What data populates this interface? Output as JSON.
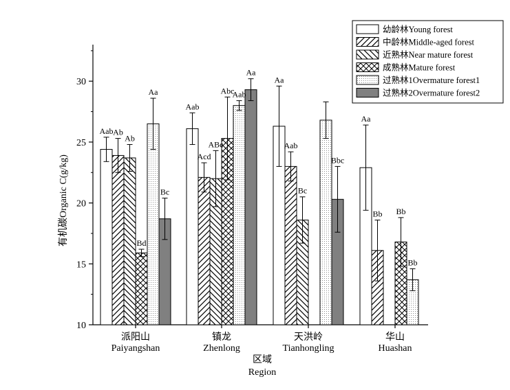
{
  "chart_data": {
    "type": "bar",
    "xlabel_cn": "区域",
    "xlabel_en": "Region",
    "ylabel": "有机碳Organic C(g/kg)",
    "ylim": [
      10,
      33
    ],
    "yticks": [
      10,
      15,
      20,
      25,
      30
    ],
    "legend_position": "top-right",
    "categories": [
      {
        "cn": "派阳山",
        "en": "Paiyangshan"
      },
      {
        "cn": "镇龙",
        "en": "Zhenlong"
      },
      {
        "cn": "天洪岭",
        "en": "Tianhongling"
      },
      {
        "cn": "华山",
        "en": "Huashan"
      }
    ],
    "series": [
      {
        "name": "幼龄林Young forest",
        "pattern": "white",
        "values": [
          24.4,
          26.1,
          26.3,
          22.9
        ],
        "errors": [
          1.0,
          1.3,
          3.3,
          3.5
        ],
        "labels": [
          "Aab",
          "Aab",
          "Aa",
          "Aa"
        ]
      },
      {
        "name": "中龄林Middle-aged forest",
        "pattern": "diag-fwd",
        "values": [
          23.9,
          22.1,
          23.0,
          16.1
        ],
        "errors": [
          1.4,
          1.2,
          1.2,
          2.5
        ],
        "labels": [
          "Ab",
          "Acd",
          "Aab",
          "Bb"
        ]
      },
      {
        "name": "近熟林Near mature forest",
        "pattern": "diag-back",
        "values": [
          23.7,
          22.0,
          18.6,
          null
        ],
        "errors": [
          1.1,
          2.3,
          1.9,
          null
        ],
        "labels": [
          "Ab",
          "ABc",
          "Bc",
          null
        ]
      },
      {
        "name": "成熟林Mature forest",
        "pattern": "cross",
        "values": [
          15.9,
          25.3,
          null,
          16.8
        ],
        "errors": [
          0.3,
          3.4,
          null,
          2.0
        ],
        "labels": [
          "Bd",
          "Abc",
          null,
          "Bb"
        ]
      },
      {
        "name": "过熟林1Overmature forest1",
        "pattern": "dots",
        "values": [
          26.5,
          28.0,
          26.8,
          13.7
        ],
        "errors": [
          2.1,
          0.4,
          1.5,
          0.9
        ],
        "labels": [
          "Aa",
          "Aab",
          null,
          "Bb"
        ]
      },
      {
        "name": "过熟林2Overmature forest2",
        "pattern": "gray",
        "values": [
          18.7,
          29.3,
          20.3,
          null
        ],
        "errors": [
          1.7,
          0.9,
          2.7,
          null
        ],
        "labels": [
          "Bc",
          "Aa",
          "Bbc",
          null
        ]
      }
    ]
  }
}
